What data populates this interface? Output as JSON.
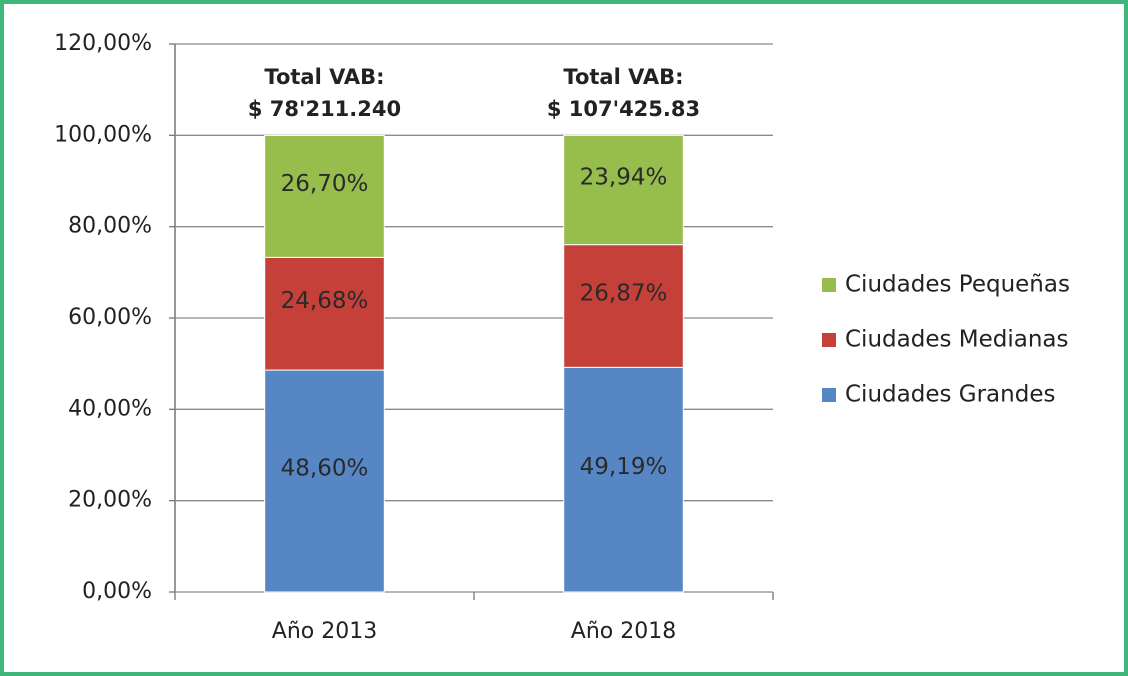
{
  "chart_data": {
    "type": "stacked_bar",
    "categories": [
      "Año 2013",
      "Año 2018"
    ],
    "series": [
      {
        "name": "Ciudades Grandes",
        "color": "#5687c4",
        "values": [
          48.6,
          49.19
        ],
        "value_labels": [
          "48,60%",
          "49,19%"
        ]
      },
      {
        "name": "Ciudades Medianas",
        "color": "#c6403a",
        "values": [
          24.68,
          26.87
        ],
        "value_labels": [
          "24,68%",
          "26,87%"
        ]
      },
      {
        "name": "Ciudades Pequeñas",
        "color": "#97bd4d",
        "values": [
          26.7,
          23.94
        ],
        "value_labels": [
          "26,70%",
          "23,94%"
        ]
      }
    ],
    "annotations": [
      [
        "Total VAB:",
        "$ 78'211.240"
      ],
      [
        "Total VAB:",
        "$ 107'425.83"
      ]
    ],
    "ylim": [
      0,
      120
    ],
    "yticks": [
      {
        "value": 0,
        "label": "0,00%"
      },
      {
        "value": 20,
        "label": "20,00%"
      },
      {
        "value": 40,
        "label": "40,00%"
      },
      {
        "value": 60,
        "label": "60,00%"
      },
      {
        "value": 80,
        "label": "80,00%"
      },
      {
        "value": 100,
        "label": "100,00%"
      },
      {
        "value": 120,
        "label": "120,00%"
      }
    ],
    "grid": true,
    "legend": "right"
  }
}
